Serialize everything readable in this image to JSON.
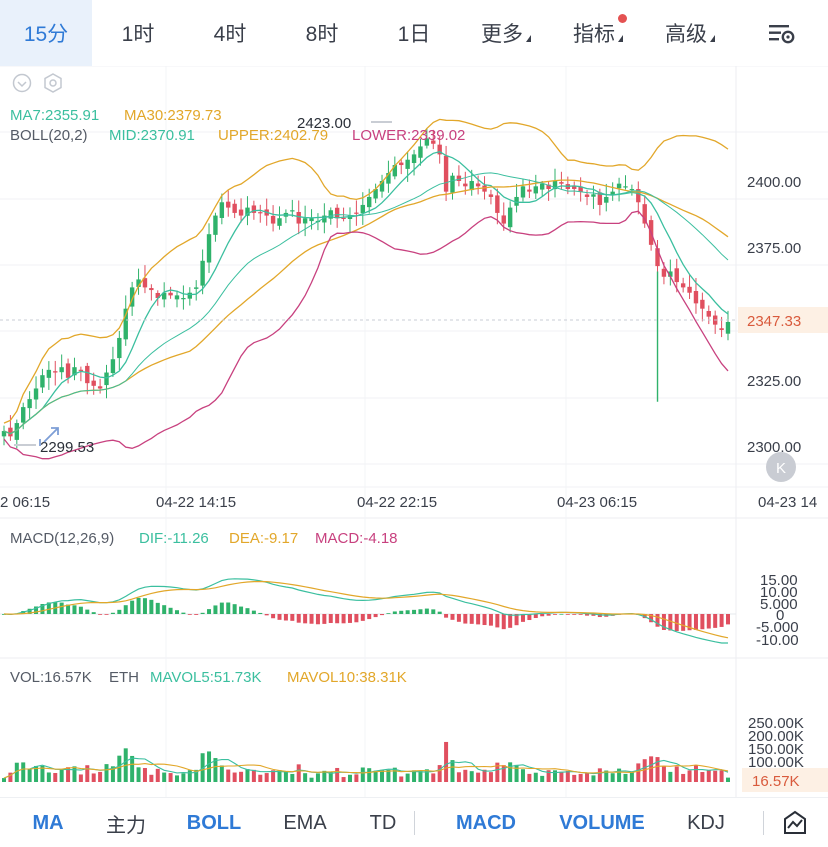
{
  "tabs": {
    "t15m": "15分",
    "t1h": "1时",
    "t4h": "4时",
    "t8h": "8时",
    "t1d": "1日",
    "more": "更多",
    "indicators": "指标",
    "advanced": "高级"
  },
  "main": {
    "ma7": "MA7:2355.91",
    "ma30": "MA30:2379.73",
    "boll_name": "BOLL(20,2)",
    "boll_mid": "MID:2370.91",
    "boll_upper": "UPPER:2402.79",
    "boll_lower": "LOWER:2339.02",
    "high_label": "2423.00",
    "low_label": "2299.53",
    "last_price": "2347.33",
    "y_ticks": [
      "2400.00",
      "2375.00",
      "2325.00",
      "2300.00"
    ],
    "x_ticks": [
      "2 06:15",
      "04-22 14:15",
      "04-22 22:15",
      "04-23 06:15",
      "04-23 14"
    ],
    "collapse_icon": "K"
  },
  "macd": {
    "name": "MACD(12,26,9)",
    "dif": "DIF:-11.26",
    "dea": "DEA:-9.17",
    "macd": "MACD:-4.18",
    "ticks": [
      "15.00",
      "10.00",
      "5.000",
      "0",
      "-5.000",
      "-10.00"
    ]
  },
  "vol": {
    "name": "VOL:16.57K",
    "unit": "ETH",
    "mavol5": "MAVOL5:51.73K",
    "mavol10": "MAVOL10:38.31K",
    "ticks": [
      "250.00K",
      "200.00K",
      "150.00K",
      "100.00K"
    ],
    "last": "16.57K"
  },
  "bottom": {
    "ma": "MA",
    "zhuli": "主力",
    "boll": "BOLL",
    "ema": "EMA",
    "td": "TD",
    "macd": "MACD",
    "volume": "VOLUME",
    "kdj": "KDJ"
  },
  "colors": {
    "up": "#2fb26b",
    "down": "#e04f5f",
    "ma7": "#3bbf9f",
    "ma30": "#e2a72a",
    "lower": "#c8417f",
    "accent": "#2f7ad6"
  },
  "chart_data": {
    "type": "candlestick",
    "series": [
      {
        "name": "MA7",
        "value": 2355.91
      },
      {
        "name": "MA30",
        "value": 2379.73
      },
      {
        "name": "MID",
        "value": 2370.91
      },
      {
        "name": "UPPER",
        "value": 2402.79
      },
      {
        "name": "LOWER",
        "value": 2339.02
      }
    ],
    "ohlc_close": [
      2306,
      2304,
      2309,
      2315,
      2318,
      2322,
      2327,
      2329,
      2328,
      2330,
      2326,
      2330,
      2329,
      2324,
      2323,
      2322,
      2328,
      2333,
      2341,
      2352,
      2360,
      2363,
      2360,
      2359,
      2356,
      2358,
      2357,
      2357,
      2356,
      2358,
      2360,
      2370,
      2380,
      2387,
      2392,
      2390,
      2388,
      2387,
      2390,
      2388,
      2388,
      2387,
      2384,
      2386,
      2388,
      2389,
      2384,
      2386,
      2386,
      2385,
      2387,
      2389,
      2386,
      2386,
      2387,
      2388,
      2391,
      2394,
      2397,
      2400,
      2403,
      2406,
      2406,
      2408,
      2410,
      2413,
      2416,
      2414,
      2410,
      2396,
      2402,
      2400,
      2398,
      2400,
      2398,
      2396,
      2394,
      2388,
      2384,
      2390,
      2394,
      2398,
      2396,
      2398,
      2399,
      2397,
      2400,
      2399,
      2397,
      2397,
      2396,
      2394,
      2395,
      2391,
      2394,
      2396,
      2399,
      2398,
      2397,
      2392,
      2384,
      2376,
      2368,
      2364,
      2366,
      2362,
      2360,
      2358,
      2354,
      2352,
      2349,
      2346,
      2344,
      2347
    ],
    "y_range": [
      2290,
      2432
    ],
    "macd_range": [
      -13,
      16
    ],
    "volume_range": [
      0,
      265000
    ],
    "last_volume": 16570
  }
}
